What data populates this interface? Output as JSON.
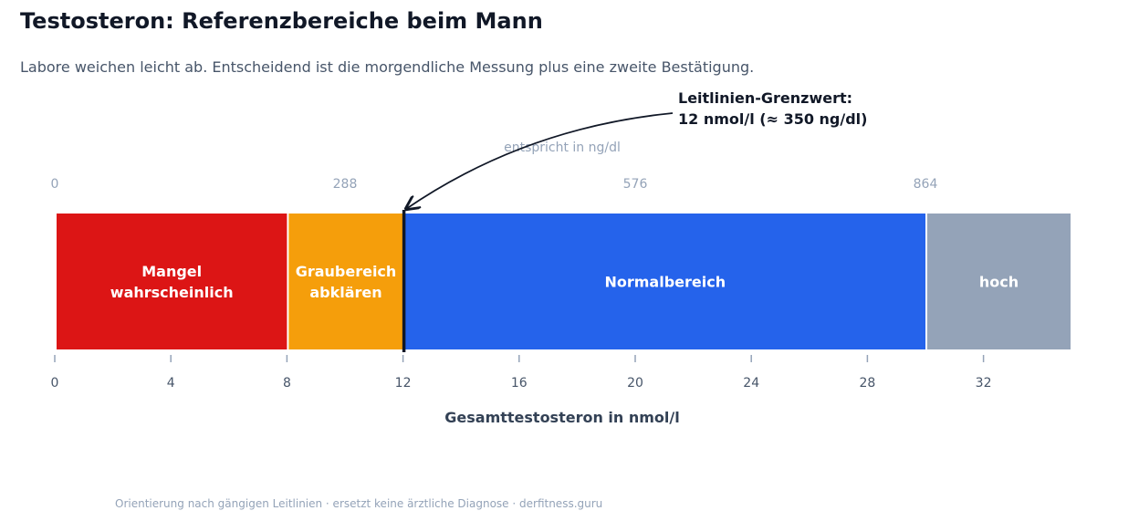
{
  "chart_data": {
    "type": "bar",
    "orientation": "horizontal-stacked-ranges",
    "title": "Testosteron: Referenzbereiche beim Mann",
    "subtitle": "Labore weichen leicht ab. Entscheidend ist die morgendliche Messung plus eine zweite Bestätigung.",
    "xlabel": "Gesamttestosteron in nmol/l",
    "xlim": [
      0,
      35
    ],
    "x_ticks": [
      0,
      4,
      8,
      12,
      16,
      20,
      24,
      28,
      32
    ],
    "secondary_axis": {
      "label": "entspricht in ng/dl",
      "ticks": [
        {
          "at": 0,
          "label": "0"
        },
        {
          "at": 10,
          "label": "288"
        },
        {
          "at": 20,
          "label": "576"
        },
        {
          "at": 30,
          "label": "864"
        }
      ]
    },
    "segments": [
      {
        "name": "Mangel wahrscheinlich",
        "lines": [
          "Mangel",
          "wahrscheinlich"
        ],
        "start": 0,
        "end": 8,
        "color": "#dc1515"
      },
      {
        "name": "Graubereich abklären",
        "lines": [
          "Graubereich",
          "abklären"
        ],
        "start": 8,
        "end": 12,
        "color": "#f59e0b"
      },
      {
        "name": "Normalbereich",
        "lines": [
          "Normalbereich"
        ],
        "start": 12,
        "end": 30,
        "color": "#2563eb"
      },
      {
        "name": "hoch",
        "lines": [
          "hoch"
        ],
        "start": 30,
        "end": 35,
        "color": "#94a3b8"
      }
    ],
    "threshold": {
      "value": 12,
      "lines": [
        "Leitlinien-Grenzwert:",
        "12 nmol/l (≈ 350 ng/dl)"
      ],
      "color": "#111827"
    },
    "footnote": "Orientierung nach gängigen Leitlinien · ersetzt keine ärztliche Diagnose · derfitness.guru",
    "grid": false,
    "legend": "none"
  }
}
